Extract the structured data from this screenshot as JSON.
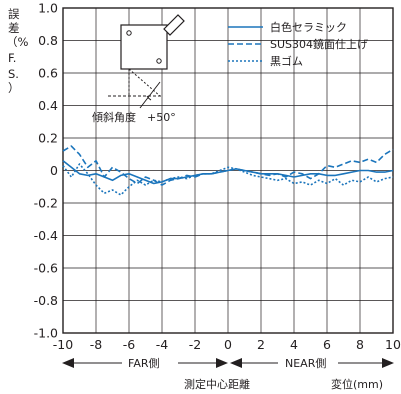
{
  "chart_data": {
    "type": "line",
    "ylabel": "誤差（%F.S.）",
    "ylabel_line1": "誤",
    "ylabel_line2": "差",
    "ylabel_line3": "（%",
    "ylabel_line4": "F.",
    "ylabel_line5": "S.",
    "ylabel_line6": "）",
    "xlabel": "測定中心距離",
    "xunit": "変位(mm)",
    "xlim": [
      -10,
      10
    ],
    "ylim": [
      -1.0,
      1.0
    ],
    "grid": true,
    "x_ticks": [
      "-10",
      "-8",
      "-6",
      "-4",
      "-2",
      "0",
      "2",
      "4",
      "6",
      "8",
      "10"
    ],
    "y_ticks": [
      "1.0",
      "0.8",
      "0.6",
      "0.4",
      "0.2",
      "0",
      "-0.2",
      "-0.4",
      "-0.6",
      "-0.8",
      "-1.0"
    ],
    "far_label": "FAR側",
    "near_label": "NEAR側",
    "inset_label": "傾斜角度　+50°",
    "legend_position": "top-right",
    "colors": {
      "line": "#1b75bc",
      "grid": "#231f20"
    },
    "series": [
      {
        "name": "白色セラミック",
        "style": "solid",
        "x": [
          -10,
          -9.5,
          -9,
          -8.5,
          -8,
          -7.5,
          -7,
          -6.5,
          -6,
          -5.5,
          -5,
          -4.5,
          -4,
          -3.5,
          -3,
          -2.5,
          -2,
          -1.5,
          -1,
          -0.5,
          0,
          0.5,
          1,
          1.5,
          2,
          2.5,
          3,
          3.5,
          4,
          4.5,
          5,
          5.5,
          6,
          6.5,
          7,
          7.5,
          8,
          8.5,
          9,
          9.5,
          10
        ],
        "y": [
          0.06,
          0.02,
          -0.02,
          -0.03,
          -0.02,
          -0.04,
          -0.06,
          -0.03,
          -0.02,
          -0.04,
          -0.06,
          -0.08,
          -0.07,
          -0.05,
          -0.05,
          -0.04,
          -0.03,
          -0.02,
          -0.02,
          -0.01,
          0.0,
          0.01,
          0.0,
          -0.01,
          -0.02,
          -0.02,
          -0.02,
          -0.03,
          -0.04,
          -0.03,
          -0.02,
          -0.02,
          -0.03,
          -0.03,
          -0.02,
          -0.01,
          0.0,
          0.0,
          -0.01,
          -0.01,
          0.0
        ]
      },
      {
        "name": "SUS304鏡面仕上げ",
        "style": "dashed",
        "x": [
          -10,
          -9.5,
          -9,
          -8.5,
          -8,
          -7.5,
          -7,
          -6.5,
          -6,
          -5.5,
          -5,
          -4.5,
          -4,
          -3.5,
          -3,
          -2.5,
          -2,
          -1.5,
          -1,
          -0.5,
          0,
          0.5,
          1,
          1.5,
          2,
          2.5,
          3,
          3.5,
          4,
          4.5,
          5,
          5.5,
          6,
          6.5,
          7,
          7.5,
          8,
          8.5,
          9,
          9.5,
          10
        ],
        "y": [
          0.12,
          0.15,
          0.1,
          0.02,
          0.06,
          -0.04,
          0.02,
          -0.01,
          -0.05,
          -0.08,
          -0.04,
          -0.06,
          -0.09,
          -0.06,
          -0.05,
          -0.03,
          -0.04,
          -0.02,
          -0.02,
          -0.01,
          0.0,
          0.01,
          0.0,
          -0.01,
          -0.02,
          -0.03,
          -0.02,
          -0.04,
          -0.01,
          -0.02,
          -0.05,
          -0.02,
          0.03,
          0.02,
          0.04,
          0.06,
          0.05,
          0.07,
          0.05,
          0.1,
          0.13
        ]
      },
      {
        "name": "黒ゴム",
        "style": "dotted",
        "x": [
          -10,
          -9.5,
          -9,
          -8.5,
          -8,
          -7.5,
          -7,
          -6.5,
          -6,
          -5.5,
          -5,
          -4.5,
          -4,
          -3.5,
          -3,
          -2.5,
          -2,
          -1.5,
          -1,
          -0.5,
          0,
          0.5,
          1,
          1.5,
          2,
          2.5,
          3,
          3.5,
          4,
          4.5,
          5,
          5.5,
          6,
          6.5,
          7,
          7.5,
          8,
          8.5,
          9,
          9.5,
          10
        ],
        "y": [
          0.03,
          -0.04,
          0.04,
          -0.02,
          -0.09,
          -0.14,
          -0.12,
          -0.15,
          -0.1,
          -0.06,
          -0.09,
          -0.06,
          -0.07,
          -0.05,
          -0.04,
          -0.05,
          -0.03,
          -0.02,
          -0.02,
          0.0,
          0.02,
          0.01,
          -0.01,
          -0.03,
          -0.04,
          -0.05,
          -0.06,
          -0.05,
          -0.08,
          -0.07,
          -0.09,
          -0.06,
          -0.08,
          -0.05,
          -0.09,
          -0.06,
          -0.07,
          -0.04,
          -0.07,
          -0.05,
          -0.04
        ]
      }
    ]
  }
}
